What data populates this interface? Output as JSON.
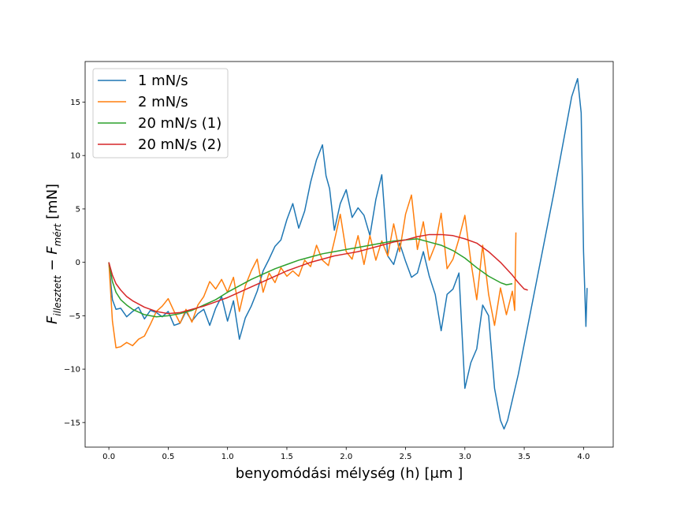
{
  "chart_data": {
    "type": "line",
    "xlabel": "benyomódási mélység (h) [μm ]",
    "ylabel": "F_illesztett − F_mért [mN]",
    "ylabel_parts": {
      "F": "F",
      "sub1": "illesztett",
      "minus": " − ",
      "F2": "F",
      "sub2": "mért",
      "unit": " [mN]"
    },
    "xlim": [
      -0.2,
      4.25
    ],
    "ylim": [
      -17.3,
      18.8
    ],
    "xticks": [
      0.0,
      0.5,
      1.0,
      1.5,
      2.0,
      2.5,
      3.0,
      3.5,
      4.0
    ],
    "xtick_labels": [
      "0.0",
      "0.5",
      "1.0",
      "1.5",
      "2.0",
      "2.5",
      "3.0",
      "3.5",
      "4.0"
    ],
    "yticks": [
      -15,
      -10,
      -5,
      0,
      5,
      10,
      15
    ],
    "ytick_labels": [
      "−15",
      "−10",
      "−5",
      "0",
      "5",
      "10",
      "15"
    ],
    "grid": false,
    "legend_position": "top-left",
    "series": [
      {
        "name": "1 mN/s",
        "color": "#1f77b4",
        "x": [
          0.0,
          0.03,
          0.06,
          0.1,
          0.15,
          0.2,
          0.25,
          0.3,
          0.35,
          0.4,
          0.45,
          0.5,
          0.55,
          0.6,
          0.65,
          0.7,
          0.75,
          0.8,
          0.85,
          0.9,
          0.95,
          1.0,
          1.05,
          1.1,
          1.15,
          1.2,
          1.25,
          1.3,
          1.35,
          1.4,
          1.45,
          1.5,
          1.55,
          1.6,
          1.65,
          1.7,
          1.75,
          1.8,
          1.83,
          1.86,
          1.9,
          1.95,
          2.0,
          2.05,
          2.1,
          2.15,
          2.2,
          2.25,
          2.3,
          2.35,
          2.4,
          2.45,
          2.5,
          2.55,
          2.6,
          2.65,
          2.7,
          2.75,
          2.8,
          2.85,
          2.9,
          2.95,
          3.0,
          3.05,
          3.1,
          3.15,
          3.2,
          3.25,
          3.3,
          3.33,
          3.36,
          3.45,
          3.6,
          3.75,
          3.9,
          3.95,
          3.98,
          4.0,
          4.02,
          4.03
        ],
        "y": [
          0.0,
          -3.5,
          -4.4,
          -4.3,
          -5.1,
          -4.6,
          -4.2,
          -5.3,
          -4.5,
          -4.7,
          -5.1,
          -4.6,
          -5.9,
          -5.7,
          -4.6,
          -5.5,
          -4.8,
          -4.4,
          -5.9,
          -4.3,
          -3.2,
          -5.5,
          -3.6,
          -7.2,
          -5.2,
          -4.1,
          -2.7,
          -0.8,
          0.3,
          1.5,
          2.1,
          4.0,
          5.5,
          3.2,
          4.8,
          7.5,
          9.6,
          11.0,
          8.1,
          6.9,
          3.0,
          5.5,
          6.8,
          4.2,
          5.1,
          4.4,
          2.5,
          5.9,
          8.2,
          0.6,
          -0.2,
          1.8,
          0.1,
          -1.4,
          -1.0,
          1.0,
          -1.3,
          -3.0,
          -6.4,
          -3.0,
          -2.5,
          -1.0,
          -11.8,
          -9.4,
          -8.1,
          -4.0,
          -5.0,
          -11.8,
          -14.8,
          -15.6,
          -14.8,
          -10.5,
          -2.0,
          6.5,
          15.5,
          17.2,
          14.0,
          1.0,
          -6.0,
          -2.4
        ]
      },
      {
        "name": "2 mN/s",
        "color": "#ff7f0e",
        "x": [
          0.0,
          0.03,
          0.06,
          0.1,
          0.15,
          0.2,
          0.25,
          0.3,
          0.35,
          0.4,
          0.45,
          0.5,
          0.55,
          0.6,
          0.65,
          0.7,
          0.75,
          0.8,
          0.85,
          0.9,
          0.95,
          1.0,
          1.05,
          1.1,
          1.15,
          1.2,
          1.25,
          1.3,
          1.35,
          1.4,
          1.45,
          1.5,
          1.55,
          1.6,
          1.65,
          1.7,
          1.75,
          1.8,
          1.85,
          1.9,
          1.95,
          2.0,
          2.05,
          2.1,
          2.15,
          2.2,
          2.25,
          2.3,
          2.35,
          2.4,
          2.45,
          2.5,
          2.55,
          2.6,
          2.65,
          2.7,
          2.75,
          2.8,
          2.85,
          2.9,
          2.95,
          3.0,
          3.05,
          3.1,
          3.15,
          3.2,
          3.25,
          3.3,
          3.35,
          3.4,
          3.42,
          3.43
        ],
        "y": [
          0.0,
          -5.5,
          -8.0,
          -7.9,
          -7.5,
          -7.8,
          -7.2,
          -6.9,
          -5.8,
          -4.6,
          -4.1,
          -3.4,
          -4.6,
          -5.7,
          -4.4,
          -5.6,
          -4.0,
          -3.2,
          -1.8,
          -2.5,
          -1.6,
          -2.8,
          -1.4,
          -4.6,
          -2.2,
          -0.8,
          0.3,
          -2.8,
          -1.0,
          -1.9,
          -0.5,
          -1.3,
          -0.8,
          -1.3,
          0.2,
          -0.4,
          1.6,
          0.2,
          -0.3,
          2.0,
          4.5,
          1.0,
          0.3,
          2.5,
          -0.2,
          2.5,
          0.2,
          2.0,
          0.6,
          3.6,
          1.0,
          4.5,
          6.3,
          1.2,
          3.8,
          0.2,
          1.6,
          4.6,
          -0.6,
          0.3,
          2.2,
          4.4,
          0.1,
          -3.5,
          1.6,
          -3.0,
          -5.9,
          -2.4,
          -4.9,
          -2.7,
          -4.5,
          2.8
        ]
      },
      {
        "name": "20 mN/s (1)",
        "color": "#2ca02c",
        "x": [
          0.0,
          0.03,
          0.06,
          0.1,
          0.15,
          0.2,
          0.3,
          0.4,
          0.5,
          0.6,
          0.7,
          0.8,
          0.9,
          1.0,
          1.1,
          1.2,
          1.3,
          1.4,
          1.5,
          1.6,
          1.7,
          1.8,
          1.9,
          2.0,
          2.1,
          2.2,
          2.3,
          2.4,
          2.5,
          2.6,
          2.7,
          2.8,
          2.9,
          3.0,
          3.1,
          3.2,
          3.3,
          3.35,
          3.4
        ],
        "y": [
          0.0,
          -1.8,
          -2.8,
          -3.5,
          -4.0,
          -4.4,
          -4.9,
          -5.1,
          -5.0,
          -4.8,
          -4.5,
          -4.0,
          -3.5,
          -2.8,
          -2.2,
          -1.6,
          -1.1,
          -0.6,
          -0.2,
          0.2,
          0.5,
          0.8,
          1.0,
          1.2,
          1.4,
          1.6,
          1.8,
          2.0,
          2.1,
          2.2,
          1.9,
          1.6,
          1.1,
          0.4,
          -0.5,
          -1.3,
          -1.9,
          -2.1,
          -2.0
        ]
      },
      {
        "name": "20 mN/s (2)",
        "color": "#d62728",
        "x": [
          0.0,
          0.03,
          0.06,
          0.1,
          0.15,
          0.2,
          0.3,
          0.4,
          0.5,
          0.6,
          0.7,
          0.8,
          0.9,
          1.0,
          1.1,
          1.2,
          1.3,
          1.4,
          1.5,
          1.6,
          1.7,
          1.8,
          1.9,
          2.0,
          2.1,
          2.2,
          2.3,
          2.4,
          2.5,
          2.6,
          2.7,
          2.8,
          2.9,
          3.0,
          3.1,
          3.2,
          3.3,
          3.4,
          3.45,
          3.5,
          3.53
        ],
        "y": [
          0.0,
          -1.2,
          -2.0,
          -2.6,
          -3.2,
          -3.6,
          -4.2,
          -4.6,
          -4.8,
          -4.7,
          -4.4,
          -4.1,
          -3.7,
          -3.3,
          -2.8,
          -2.3,
          -1.8,
          -1.3,
          -0.8,
          -0.4,
          0.0,
          0.3,
          0.6,
          0.8,
          1.0,
          1.3,
          1.6,
          1.9,
          2.1,
          2.4,
          2.6,
          2.6,
          2.5,
          2.2,
          1.8,
          1.0,
          0.0,
          -1.2,
          -1.9,
          -2.5,
          -2.6
        ]
      }
    ]
  }
}
